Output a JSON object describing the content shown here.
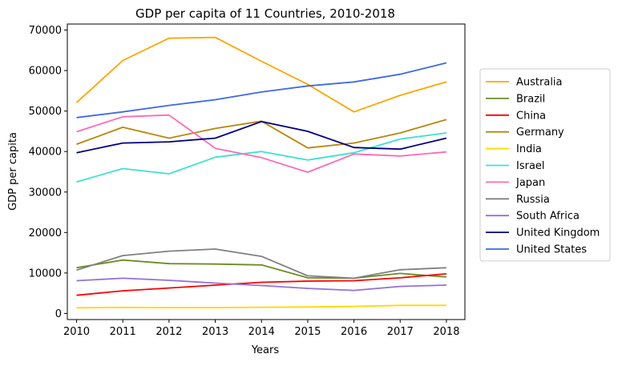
{
  "chart_data": {
    "type": "line",
    "title": "GDP per capita of 11 Countries, 2010-2018",
    "xlabel": "Years",
    "ylabel": "GDP per capita",
    "x": [
      2010,
      2011,
      2012,
      2013,
      2014,
      2015,
      2016,
      2017,
      2018
    ],
    "xlim": [
      2009.8,
      2018.4
    ],
    "ylim": [
      -1500,
      71500
    ],
    "yticks": [
      0,
      10000,
      20000,
      30000,
      40000,
      50000,
      60000,
      70000
    ],
    "grid": false,
    "legend_position": "right",
    "series": [
      {
        "name": "Australia",
        "color": "#FFA500",
        "values": [
          52100,
          62500,
          68000,
          68200,
          62300,
          56600,
          49800,
          53900,
          57200
        ]
      },
      {
        "name": "Brazil",
        "color": "#6B8E23",
        "values": [
          11300,
          13200,
          12300,
          12200,
          12000,
          8800,
          8700,
          9900,
          9000
        ]
      },
      {
        "name": "China",
        "color": "#FF0000",
        "values": [
          4500,
          5600,
          6300,
          7000,
          7700,
          8000,
          8100,
          8800,
          9800
        ]
      },
      {
        "name": "Germany",
        "color": "#B8860B",
        "values": [
          41800,
          46000,
          43300,
          45700,
          47500,
          40900,
          42100,
          44600,
          47900
        ]
      },
      {
        "name": "India",
        "color": "#FFD700",
        "values": [
          1400,
          1500,
          1450,
          1450,
          1550,
          1600,
          1750,
          2000,
          2000
        ]
      },
      {
        "name": "Israel",
        "color": "#40E0D0",
        "values": [
          32500,
          35800,
          34500,
          38600,
          40000,
          37900,
          39700,
          43100,
          44600
        ]
      },
      {
        "name": "Japan",
        "color": "#FF69B4",
        "values": [
          44900,
          48600,
          49000,
          40800,
          38500,
          34900,
          39400,
          38900,
          39900
        ]
      },
      {
        "name": "Russia",
        "color": "#808080",
        "values": [
          10700,
          14300,
          15400,
          15900,
          14100,
          9300,
          8700,
          10800,
          11300
        ]
      },
      {
        "name": "South Africa",
        "color": "#9370DB",
        "values": [
          8100,
          8700,
          8200,
          7500,
          6900,
          6200,
          5700,
          6700,
          7000
        ]
      },
      {
        "name": "United Kingdom",
        "color": "#000080",
        "values": [
          39700,
          42100,
          42400,
          43300,
          47400,
          45000,
          41000,
          40600,
          43300
        ]
      },
      {
        "name": "United States",
        "color": "#4169E1",
        "values": [
          48400,
          49800,
          51400,
          52800,
          54700,
          56200,
          57200,
          59100,
          61900
        ]
      }
    ]
  }
}
